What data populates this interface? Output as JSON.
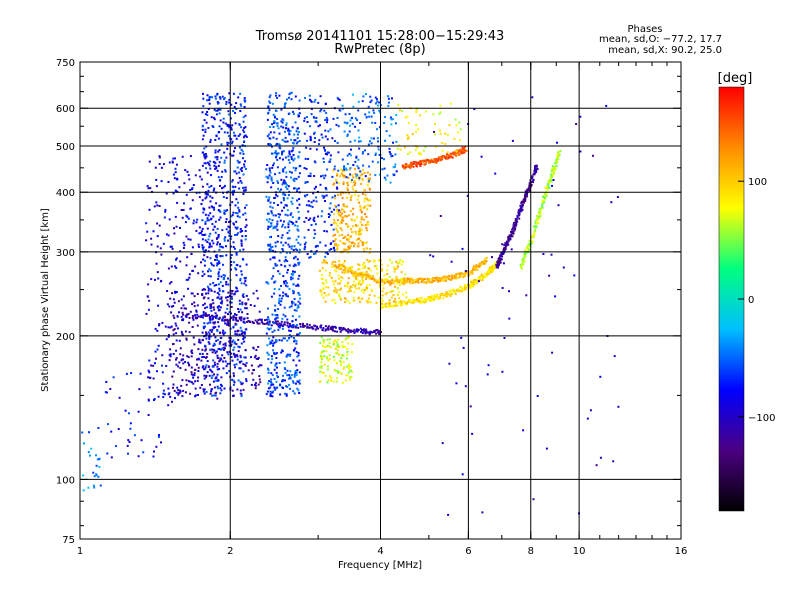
{
  "chart_data": {
    "type": "scatter",
    "title": "Tromsø 20141101 15:28:00−15:29:43",
    "subtitle": "RwPretec (8p)",
    "xlabel": "Frequency [MHz]",
    "ylabel": "Stationary phase Virtual Height [km]",
    "xscale": "log",
    "yscale": "log",
    "xlim": [
      1,
      16
    ],
    "ylim": [
      75,
      750
    ],
    "x_ticks": [
      {
        "value": 1,
        "label": "1"
      },
      {
        "value": 2,
        "label": "2"
      },
      {
        "value": 4,
        "label": "4"
      },
      {
        "value": 6,
        "label": "6"
      },
      {
        "value": 8,
        "label": "8"
      },
      {
        "value": 10,
        "label": "10"
      },
      {
        "value": 16,
        "label": "16"
      }
    ],
    "y_ticks": [
      {
        "value": 75,
        "label": "75"
      },
      {
        "value": 100,
        "label": "100"
      },
      {
        "value": 200,
        "label": "200"
      },
      {
        "value": 300,
        "label": "300"
      },
      {
        "value": 400,
        "label": "400"
      },
      {
        "value": 500,
        "label": "500"
      },
      {
        "value": 600,
        "label": "600"
      },
      {
        "value": 750,
        "label": "750"
      }
    ],
    "x_gridlines": [
      2,
      4,
      6,
      8,
      10
    ],
    "y_gridlines": [
      100,
      200,
      300,
      400,
      500,
      600
    ],
    "grid": true,
    "legend": {
      "heading": "Phases",
      "lines": [
        "mean, sd,O: −77.2, 17.7",
        "mean, sd,X:  90.2, 25.0"
      ],
      "position": "top-right"
    },
    "colorbar": {
      "label": "[deg]",
      "range": [
        -180,
        180
      ],
      "ticks": [
        {
          "value": 100,
          "label": "100"
        },
        {
          "value": 0,
          "label": "0"
        },
        {
          "value": -100,
          "label": "−100"
        }
      ],
      "colors": [
        "#000000",
        "#4b0082",
        "#0000ff",
        "#00bfff",
        "#00ff7f",
        "#ffff00",
        "#ff8c00",
        "#ff0000"
      ]
    },
    "series": [
      {
        "type": "trace",
        "phase": -110,
        "points": [
          [
            1.6,
            222
          ],
          [
            2.0,
            218
          ],
          [
            2.5,
            213
          ],
          [
            3.0,
            209
          ],
          [
            3.5,
            206
          ],
          [
            4.0,
            204
          ]
        ]
      },
      {
        "type": "trace",
        "phase": 90,
        "points": [
          [
            4.0,
            232
          ],
          [
            4.5,
            236
          ],
          [
            5.0,
            240
          ],
          [
            5.5,
            247
          ],
          [
            6.0,
            256
          ],
          [
            6.5,
            270
          ],
          [
            6.8,
            285
          ]
        ]
      },
      {
        "type": "trace",
        "phase": 110,
        "points": [
          [
            3.2,
            285
          ],
          [
            3.6,
            270
          ],
          [
            4.0,
            262
          ],
          [
            4.5,
            262
          ],
          [
            5.0,
            262
          ],
          [
            5.5,
            266
          ],
          [
            6.0,
            272
          ],
          [
            6.5,
            290
          ]
        ]
      },
      {
        "type": "trace",
        "phase": -120,
        "points": [
          [
            6.8,
            280
          ],
          [
            7.0,
            300
          ],
          [
            7.3,
            330
          ],
          [
            7.6,
            370
          ],
          [
            7.9,
            410
          ],
          [
            8.2,
            460
          ]
        ]
      },
      {
        "type": "trace",
        "phase": 60,
        "points": [
          [
            7.6,
            280
          ],
          [
            8.0,
            320
          ],
          [
            8.4,
            380
          ],
          [
            8.8,
            440
          ],
          [
            9.1,
            490
          ]
        ]
      },
      {
        "type": "trace",
        "phase": 150,
        "points": [
          [
            4.4,
            455
          ],
          [
            4.8,
            462
          ],
          [
            5.2,
            470
          ],
          [
            5.6,
            482
          ],
          [
            5.9,
            495
          ]
        ]
      },
      {
        "type": "cloud",
        "phase": -70,
        "x": [
          1.75,
          2.15
        ],
        "y": [
          150,
          650
        ],
        "n": 700
      },
      {
        "type": "cloud",
        "phase": -60,
        "x": [
          2.35,
          2.75
        ],
        "y": [
          150,
          650
        ],
        "n": 650
      },
      {
        "type": "cloud",
        "phase": -90,
        "x": [
          1.35,
          1.9
        ],
        "y": [
          145,
          480
        ],
        "n": 350
      },
      {
        "type": "cloud",
        "phase": -110,
        "x": [
          1.5,
          2.3
        ],
        "y": [
          150,
          250
        ],
        "n": 250
      },
      {
        "type": "cloud",
        "phase": -70,
        "x": [
          2.8,
          3.3
        ],
        "y": [
          290,
          650
        ],
        "n": 200
      },
      {
        "type": "cloud",
        "phase": 110,
        "x": [
          3.2,
          3.8
        ],
        "y": [
          300,
          450
        ],
        "n": 250
      },
      {
        "type": "cloud",
        "phase": 90,
        "x": [
          3.0,
          4.5
        ],
        "y": [
          235,
          290
        ],
        "n": 250
      },
      {
        "type": "cloud",
        "phase": 70,
        "x": [
          3.0,
          3.5
        ],
        "y": [
          160,
          200
        ],
        "n": 120
      },
      {
        "type": "cloud",
        "phase": -50,
        "x": [
          3.3,
          4.3
        ],
        "y": [
          420,
          650
        ],
        "n": 150
      },
      {
        "type": "cloud",
        "phase": 80,
        "x": [
          4.3,
          5.8
        ],
        "y": [
          480,
          620
        ],
        "n": 60
      },
      {
        "type": "cloud",
        "phase": -80,
        "x": [
          1.1,
          1.5
        ],
        "y": [
          110,
          170
        ],
        "n": 40
      },
      {
        "type": "cloud",
        "phase": -40,
        "x": [
          1.0,
          1.1
        ],
        "y": [
          95,
          130
        ],
        "n": 25
      },
      {
        "type": "cloud",
        "phase": -100,
        "x": [
          5.0,
          12.0
        ],
        "y": [
          80,
          650
        ],
        "n": 70
      }
    ]
  }
}
